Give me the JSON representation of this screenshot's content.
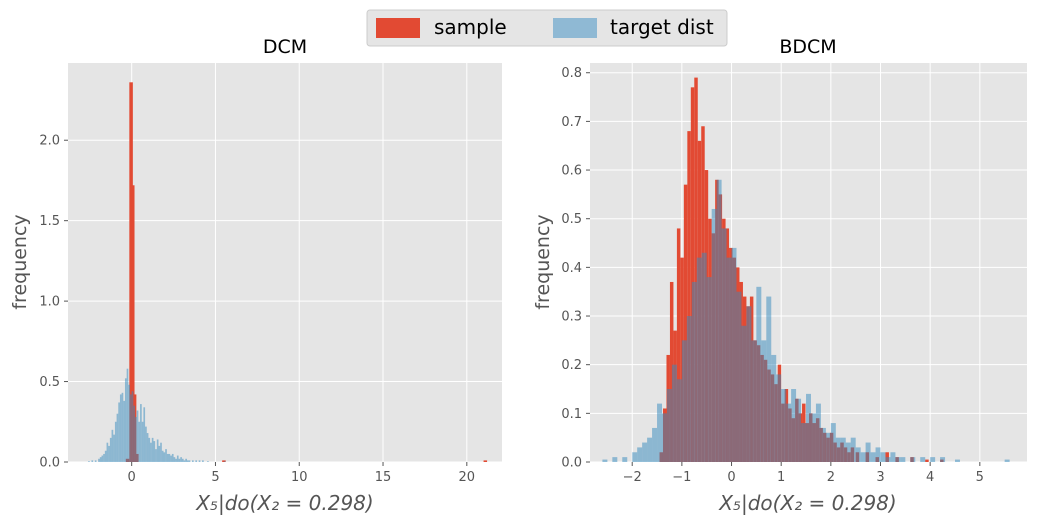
{
  "legend": {
    "placement": "top-center",
    "entries": [
      {
        "label": "sample",
        "color": "#e24a33"
      },
      {
        "label": "target dist",
        "color": "#348abd"
      }
    ]
  },
  "style": {
    "panel_background": "#e5e5e5",
    "grid_color": "#ffffff",
    "sample_color": "#e24a33",
    "target_color": "#348abd",
    "target_alpha": 0.5
  },
  "chart_data": [
    {
      "type": "bar",
      "title": "DCM",
      "xlabel": "X₅|do(X₂ = 0.298)",
      "ylabel": "frequency",
      "xlim": [
        -3.8,
        22.1
      ],
      "ylim": [
        0,
        2.48
      ],
      "xticks": [
        0,
        5,
        10,
        15,
        20
      ],
      "xtick_labels": [
        "0",
        "5",
        "10",
        "15",
        "20"
      ],
      "yticks": [
        0.0,
        0.5,
        1.0,
        1.5,
        2.0
      ],
      "ytick_labels": [
        "0.0",
        "0.5",
        "1.0",
        "1.5",
        "2.0"
      ],
      "grid": true,
      "series": [
        {
          "name": "sample",
          "bin_width": 0.21,
          "bins": [
            [
              -0.35,
              0.02
            ],
            [
              -0.14,
              2.36
            ],
            [
              -0.04,
              1.72
            ],
            [
              0.07,
              0.42
            ],
            [
              0.2,
              0.05
            ],
            [
              5.4,
              0.01
            ],
            [
              21.0,
              0.01
            ]
          ]
        },
        {
          "name": "target dist",
          "bin_width": 0.1,
          "bins": [
            [
              -2.6,
              0.005
            ],
            [
              -2.4,
              0.01
            ],
            [
              -2.2,
              0.01
            ],
            [
              -2.0,
              0.02
            ],
            [
              -1.9,
              0.03
            ],
            [
              -1.8,
              0.04
            ],
            [
              -1.7,
              0.05
            ],
            [
              -1.6,
              0.07
            ],
            [
              -1.5,
              0.12
            ],
            [
              -1.4,
              0.1
            ],
            [
              -1.3,
              0.15
            ],
            [
              -1.2,
              0.2
            ],
            [
              -1.1,
              0.17
            ],
            [
              -1.0,
              0.25
            ],
            [
              -0.9,
              0.3
            ],
            [
              -0.8,
              0.37
            ],
            [
              -0.7,
              0.42
            ],
            [
              -0.6,
              0.43
            ],
            [
              -0.5,
              0.38
            ],
            [
              -0.4,
              0.52
            ],
            [
              -0.3,
              0.58
            ],
            [
              -0.2,
              0.48
            ],
            [
              -0.1,
              0.42
            ],
            [
              0.0,
              0.44
            ],
            [
              0.1,
              0.35
            ],
            [
              0.2,
              0.28
            ],
            [
              0.3,
              0.32
            ],
            [
              0.4,
              0.25
            ],
            [
              0.5,
              0.36
            ],
            [
              0.6,
              0.25
            ],
            [
              0.7,
              0.34
            ],
            [
              0.8,
              0.22
            ],
            [
              0.9,
              0.18
            ],
            [
              1.0,
              0.15
            ],
            [
              1.1,
              0.12
            ],
            [
              1.2,
              0.15
            ],
            [
              1.3,
              0.13
            ],
            [
              1.4,
              0.08
            ],
            [
              1.5,
              0.14
            ],
            [
              1.6,
              0.1
            ],
            [
              1.7,
              0.12
            ],
            [
              1.8,
              0.07
            ],
            [
              1.9,
              0.06
            ],
            [
              2.0,
              0.08
            ],
            [
              2.1,
              0.05
            ],
            [
              2.2,
              0.05
            ],
            [
              2.3,
              0.04
            ],
            [
              2.4,
              0.05
            ],
            [
              2.5,
              0.03
            ],
            [
              2.6,
              0.02
            ],
            [
              2.7,
              0.04
            ],
            [
              2.8,
              0.02
            ],
            [
              2.9,
              0.03
            ],
            [
              3.0,
              0.02
            ],
            [
              3.1,
              0.01
            ],
            [
              3.2,
              0.02
            ],
            [
              3.3,
              0.01
            ],
            [
              3.4,
              0.01
            ],
            [
              3.6,
              0.01
            ],
            [
              3.8,
              0.01
            ],
            [
              4.0,
              0.01
            ],
            [
              4.2,
              0.01
            ],
            [
              4.5,
              0.005
            ],
            [
              5.5,
              0.005
            ]
          ]
        }
      ]
    },
    {
      "type": "bar",
      "title": "BDCM",
      "xlabel": "X₅|do(X₂ = 0.298)",
      "ylabel": "frequency",
      "xlim": [
        -2.85,
        5.95
      ],
      "ylim": [
        0,
        0.82
      ],
      "xticks": [
        -2,
        -1,
        0,
        1,
        2,
        3,
        4,
        5
      ],
      "xtick_labels": [
        "−2",
        "−1",
        "0",
        "1",
        "2",
        "3",
        "4",
        "5"
      ],
      "yticks": [
        0.0,
        0.1,
        0.2,
        0.3,
        0.4,
        0.5,
        0.6,
        0.7,
        0.8
      ],
      "ytick_labels": [
        "0.0",
        "0.1",
        "0.2",
        "0.3",
        "0.4",
        "0.5",
        "0.6",
        "0.7",
        "0.8"
      ],
      "grid": true,
      "series": [
        {
          "name": "sample",
          "bin_width": 0.07,
          "bins": [
            [
              -1.45,
              0.02
            ],
            [
              -1.38,
              0.11
            ],
            [
              -1.31,
              0.22
            ],
            [
              -1.24,
              0.37
            ],
            [
              -1.17,
              0.27
            ],
            [
              -1.1,
              0.48
            ],
            [
              -1.03,
              0.42
            ],
            [
              -0.96,
              0.57
            ],
            [
              -0.89,
              0.68
            ],
            [
              -0.82,
              0.77
            ],
            [
              -0.75,
              0.79
            ],
            [
              -0.68,
              0.66
            ],
            [
              -0.61,
              0.69
            ],
            [
              -0.54,
              0.6
            ],
            [
              -0.47,
              0.5
            ],
            [
              -0.4,
              0.47
            ],
            [
              -0.33,
              0.58
            ],
            [
              -0.26,
              0.55
            ],
            [
              -0.19,
              0.5
            ],
            [
              -0.12,
              0.48
            ],
            [
              -0.05,
              0.44
            ],
            [
              0.02,
              0.42
            ],
            [
              0.09,
              0.4
            ],
            [
              0.16,
              0.37
            ],
            [
              0.23,
              0.34
            ],
            [
              0.3,
              0.32
            ],
            [
              0.37,
              0.34
            ],
            [
              0.44,
              0.25
            ],
            [
              0.51,
              0.24
            ],
            [
              0.58,
              0.22
            ],
            [
              0.65,
              0.21
            ],
            [
              0.72,
              0.19
            ],
            [
              0.79,
              0.18
            ],
            [
              0.86,
              0.16
            ],
            [
              0.93,
              0.2
            ],
            [
              1.0,
              0.12
            ],
            [
              1.07,
              0.15
            ],
            [
              1.14,
              0.11
            ],
            [
              1.21,
              0.09
            ],
            [
              1.28,
              0.13
            ],
            [
              1.35,
              0.1
            ],
            [
              1.42,
              0.12
            ],
            [
              1.49,
              0.08
            ],
            [
              1.56,
              0.1
            ],
            [
              1.63,
              0.08
            ],
            [
              1.7,
              0.09
            ],
            [
              1.77,
              0.07
            ],
            [
              1.84,
              0.06
            ],
            [
              1.91,
              0.05
            ],
            [
              1.98,
              0.06
            ],
            [
              2.05,
              0.04
            ],
            [
              2.12,
              0.03
            ],
            [
              2.19,
              0.04
            ],
            [
              2.26,
              0.03
            ],
            [
              2.33,
              0.02
            ],
            [
              2.4,
              0.03
            ],
            [
              2.5,
              0.02
            ],
            [
              2.7,
              0.02
            ],
            [
              2.9,
              0.01
            ],
            [
              3.1,
              0.02
            ],
            [
              3.3,
              0.01
            ],
            [
              3.6,
              0.01
            ],
            [
              3.9,
              0.005
            ],
            [
              4.2,
              0.005
            ]
          ]
        },
        {
          "name": "target dist",
          "bin_width": 0.1,
          "bins": [
            [
              -2.6,
              0.005
            ],
            [
              -2.4,
              0.01
            ],
            [
              -2.2,
              0.01
            ],
            [
              -2.0,
              0.02
            ],
            [
              -1.9,
              0.03
            ],
            [
              -1.8,
              0.04
            ],
            [
              -1.7,
              0.05
            ],
            [
              -1.6,
              0.07
            ],
            [
              -1.5,
              0.12
            ],
            [
              -1.4,
              0.1
            ],
            [
              -1.3,
              0.15
            ],
            [
              -1.2,
              0.2
            ],
            [
              -1.1,
              0.17
            ],
            [
              -1.0,
              0.25
            ],
            [
              -0.9,
              0.3
            ],
            [
              -0.8,
              0.37
            ],
            [
              -0.7,
              0.42
            ],
            [
              -0.6,
              0.43
            ],
            [
              -0.5,
              0.38
            ],
            [
              -0.4,
              0.52
            ],
            [
              -0.3,
              0.58
            ],
            [
              -0.2,
              0.48
            ],
            [
              -0.1,
              0.42
            ],
            [
              0.0,
              0.44
            ],
            [
              0.1,
              0.35
            ],
            [
              0.2,
              0.28
            ],
            [
              0.3,
              0.32
            ],
            [
              0.4,
              0.25
            ],
            [
              0.5,
              0.36
            ],
            [
              0.6,
              0.25
            ],
            [
              0.7,
              0.34
            ],
            [
              0.8,
              0.22
            ],
            [
              0.9,
              0.18
            ],
            [
              1.0,
              0.15
            ],
            [
              1.1,
              0.12
            ],
            [
              1.2,
              0.15
            ],
            [
              1.3,
              0.13
            ],
            [
              1.4,
              0.08
            ],
            [
              1.5,
              0.14
            ],
            [
              1.6,
              0.1
            ],
            [
              1.7,
              0.12
            ],
            [
              1.8,
              0.07
            ],
            [
              1.9,
              0.06
            ],
            [
              2.0,
              0.08
            ],
            [
              2.1,
              0.05
            ],
            [
              2.2,
              0.05
            ],
            [
              2.3,
              0.04
            ],
            [
              2.4,
              0.05
            ],
            [
              2.5,
              0.03
            ],
            [
              2.6,
              0.02
            ],
            [
              2.7,
              0.04
            ],
            [
              2.8,
              0.02
            ],
            [
              2.9,
              0.03
            ],
            [
              3.0,
              0.02
            ],
            [
              3.1,
              0.01
            ],
            [
              3.2,
              0.02
            ],
            [
              3.3,
              0.01
            ],
            [
              3.4,
              0.01
            ],
            [
              3.6,
              0.01
            ],
            [
              3.8,
              0.01
            ],
            [
              4.0,
              0.01
            ],
            [
              4.2,
              0.01
            ],
            [
              4.5,
              0.005
            ],
            [
              5.5,
              0.005
            ]
          ]
        }
      ]
    }
  ]
}
